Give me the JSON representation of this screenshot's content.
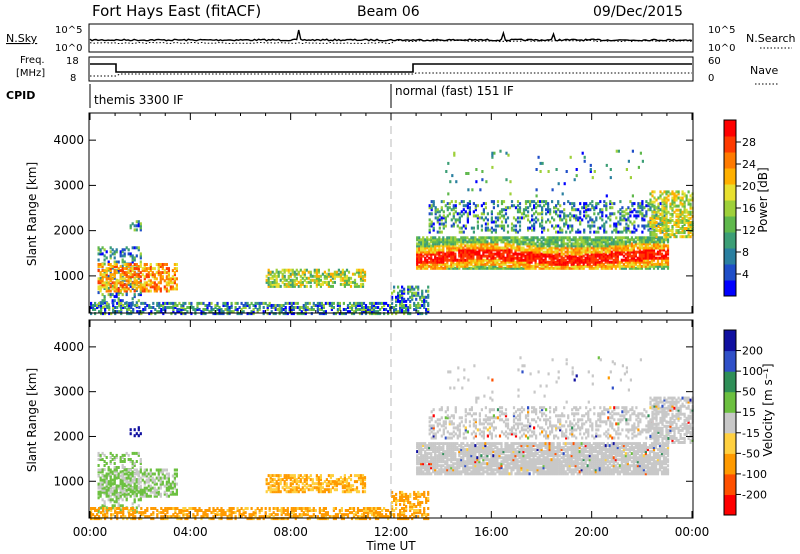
{
  "header": {
    "title": "Fort Hays East (fitACF)",
    "beam": "Beam 06",
    "date": "09/Dec/2015"
  },
  "top_panels": {
    "nsky_label": "N.Sky",
    "nsearch_label": "N.Search",
    "freq_label_1": "Freq.",
    "freq_label_2": "[MHz]",
    "nave_label": "Nave",
    "cpid_label": "CPID",
    "nsky_ticks": [
      "10^5",
      "10^0"
    ],
    "nsearch_ticks": [
      "10^5",
      "10^0"
    ],
    "freq_ticks": [
      "18",
      "8"
    ],
    "nave_ticks": [
      "60",
      "0"
    ],
    "cpid_segments": [
      {
        "label": "themis 3300 IF",
        "start_h": 0,
        "end_h": 12
      },
      {
        "label": "normal (fast) 151 IF",
        "start_h": 12,
        "end_h": 24
      }
    ]
  },
  "chart_data": [
    {
      "type": "heatmap",
      "panel": "power",
      "ylabel": "Slant Range [km]",
      "xlabel": "Time UT",
      "xlim": [
        0,
        24
      ],
      "ylim": [
        180,
        4600
      ],
      "yticks": [
        1000,
        2000,
        3000,
        4000
      ],
      "xticks": [
        "00:00",
        "04:00",
        "08:00",
        "12:00",
        "16:00",
        "20:00",
        "00:00"
      ],
      "colorbar": {
        "label": "Power [dB]",
        "ticks": [
          "4",
          "8",
          "12",
          "16",
          "20",
          "24",
          "28"
        ],
        "colors": [
          "#0000ff",
          "#1f4ec8",
          "#2a7fa0",
          "#3c9e76",
          "#5fb84c",
          "#9ed03a",
          "#e8e030",
          "#ffb000",
          "#ff7a00",
          "#ff3a00",
          "#ff0000"
        ]
      }
    },
    {
      "type": "heatmap",
      "panel": "velocity",
      "ylabel": "Slant Range [km]",
      "xlabel": "Time UT",
      "xlim": [
        0,
        24
      ],
      "ylim": [
        180,
        4600
      ],
      "yticks": [
        1000,
        2000,
        3000,
        4000
      ],
      "xticks": [
        "00:00",
        "04:00",
        "08:00",
        "12:00",
        "16:00",
        "20:00",
        "00:00"
      ],
      "colorbar": {
        "label": "Velocity [m s⁻¹]",
        "ticks": [
          "200",
          "100",
          "50",
          "15",
          "-15",
          "-50",
          "-100",
          "-200"
        ],
        "colors": [
          "#1010a0",
          "#3050c8",
          "#2f8f58",
          "#6cc040",
          "#c8c8c8",
          "#ffd040",
          "#ff9a00",
          "#ff5000",
          "#ff0000"
        ]
      }
    }
  ]
}
